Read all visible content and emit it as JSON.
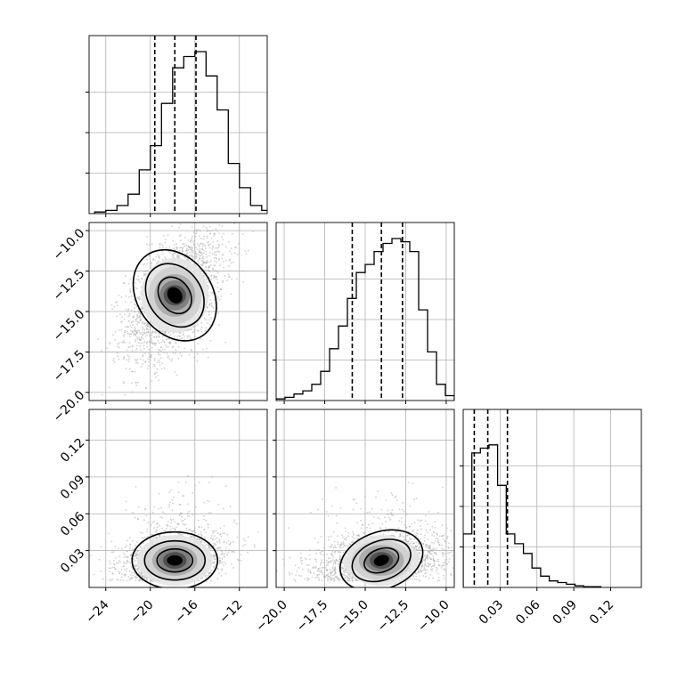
{
  "chart_data": {
    "type": "corner",
    "description_of_quantiles": [
      0.16,
      0.5,
      0.84
    ],
    "params": [
      {
        "range": [
          -25.5,
          -9.5
        ],
        "ticks": [
          -24,
          -20,
          -16,
          -12
        ],
        "tick_labels": [
          "−24",
          "−20",
          "−16",
          "−12"
        ],
        "quantiles": [
          -19.6,
          -17.8,
          -15.9
        ]
      },
      {
        "range": [
          -20.5,
          -9.5
        ],
        "ticks": [
          -20,
          -17.5,
          -15,
          -12.5,
          -10
        ],
        "tick_labels": [
          "−20.0",
          "−17.5",
          "−15.0",
          "−12.5",
          "−10.0"
        ],
        "quantiles": [
          -15.8,
          -14.0,
          -12.7
        ]
      },
      {
        "range": [
          0.0,
          0.145
        ],
        "ticks": [
          0.03,
          0.06,
          0.09,
          0.12
        ],
        "tick_labels": [
          "0.03",
          "0.06",
          "0.09",
          "0.12"
        ],
        "quantiles": [
          0.009,
          0.02,
          0.036
        ]
      }
    ],
    "histograms": [
      {
        "x0": -25.0,
        "binw": 1.0,
        "counts": [
          0.01,
          0.02,
          0.05,
          0.12,
          0.27,
          0.42,
          0.68,
          0.9,
          0.97,
          1.0,
          0.85,
          0.64,
          0.31,
          0.16,
          0.05,
          0.02,
          0.01,
          0.005
        ]
      },
      {
        "x0": -20.5,
        "binw": 0.55,
        "counts": [
          0.01,
          0.02,
          0.04,
          0.06,
          0.1,
          0.18,
          0.32,
          0.46,
          0.63,
          0.79,
          0.84,
          0.92,
          0.97,
          1.0,
          0.98,
          0.92,
          0.56,
          0.3,
          0.1,
          0.03
        ]
      },
      {
        "x0": 0.0,
        "binw": 0.007,
        "counts": [
          0.33,
          0.83,
          0.86,
          0.88,
          0.63,
          0.33,
          0.27,
          0.21,
          0.12,
          0.07,
          0.04,
          0.03,
          0.02,
          0.01,
          0.005,
          0.005
        ]
      }
    ],
    "pairs": [
      {
        "row": 1,
        "col": 0,
        "mean": [
          -17.8,
          -14.0
        ],
        "sd": [
          2.2,
          2.0
        ],
        "rho": 0.5,
        "n": 2200
      },
      {
        "row": 2,
        "col": 0,
        "mean": [
          -17.8,
          0.022
        ],
        "sd": [
          2.2,
          0.011
        ],
        "rho": 0.2,
        "n": 2200
      },
      {
        "row": 2,
        "col": 1,
        "mean": [
          -14.0,
          0.022
        ],
        "sd": [
          2.0,
          0.011
        ],
        "rho": 0.25,
        "n": 2200
      }
    ],
    "grid": true
  }
}
